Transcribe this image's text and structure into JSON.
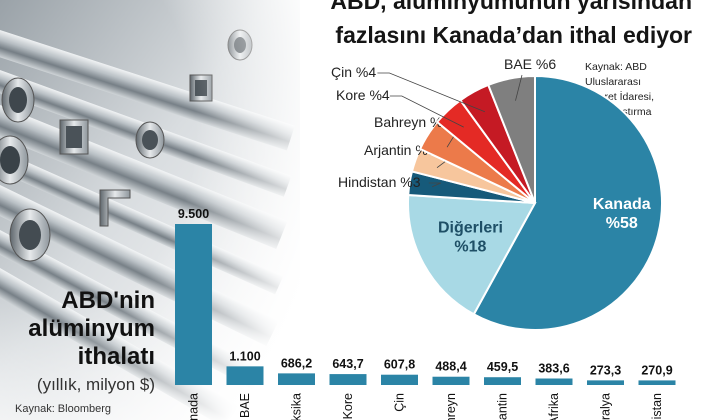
{
  "pie": {
    "title_line1": "ABD, alüminyumunun yarısından",
    "title_line2": "fazlasını Kanada’dan ithal ediyor",
    "source_lines": [
      "Kaynak: ABD Uluslararası",
      "Ticaret İdaresi,",
      "ING Araştırma"
    ]
  },
  "bars": {
    "title_lines": [
      "ABD'nin",
      "alüminyum",
      "ithalatı"
    ],
    "subtitle": "(yıllık, milyon $)",
    "source": "Kaynak: Bloomberg"
  },
  "colors": {
    "bar": "#2b84a6",
    "kanada": "#2b84a6",
    "digerleri": "#a8d9e5",
    "hindistan": "#165a7a",
    "arjantin": "#f7c69d",
    "bahreyn": "#ec7a4a",
    "kore": "#e42a25",
    "cin": "#c51a24",
    "bae": "#7f7f7f"
  },
  "chart_data": [
    {
      "type": "pie",
      "title": "ABD, alüminyumunun yarısından fazlasını Kanada’dan ithal ediyor",
      "slices": [
        {
          "label": "Kanada",
          "value_label": "%58",
          "value": 58,
          "color": "#2b84a6",
          "label_inside": true
        },
        {
          "label": "Diğerleri",
          "value_label": "%18",
          "value": 18,
          "color": "#a8d9e5",
          "label_inside": true
        },
        {
          "label": "Hindistan %3",
          "value": 3,
          "color": "#165a7a",
          "label_inside": false
        },
        {
          "label": "Arjantin %3",
          "value": 3,
          "color": "#f7c69d",
          "label_inside": false
        },
        {
          "label": "Bahreyn %4",
          "value": 4,
          "color": "#ec7a4a",
          "label_inside": false
        },
        {
          "label": "Kore %4",
          "value": 4,
          "color": "#e42a25",
          "label_inside": false
        },
        {
          "label": "Çin %4",
          "value": 4,
          "color": "#c51a24",
          "label_inside": false
        },
        {
          "label": "BAE %6",
          "value": 6,
          "color": "#7f7f7f",
          "label_inside": false
        }
      ]
    },
    {
      "type": "bar",
      "title": "ABD'nin alüminyum ithalatı",
      "ylabel": "(yıllık, milyon $)",
      "categories": [
        "Kanada",
        "BAE",
        "Meksika",
        "G.Kore",
        "Çin",
        "Bahreyn",
        "Arjantin",
        "G.Afrika",
        "Avustralya",
        "Hindistan"
      ],
      "visible_categories": [
        "anada",
        "BAE",
        "eksika",
        "G.Kore",
        "Çin",
        "hreyn",
        "rjantin",
        "Afrika",
        "tralya",
        "ndistan"
      ],
      "values": [
        9500,
        1100,
        686.2,
        643.7,
        607.8,
        488.4,
        459.5,
        383.6,
        273.3,
        270.9
      ],
      "value_labels": [
        "9.500",
        "1.100",
        "686,2",
        "643,7",
        "607,8",
        "488,4",
        "459,5",
        "383,6",
        "273,3",
        "270,9"
      ]
    }
  ]
}
